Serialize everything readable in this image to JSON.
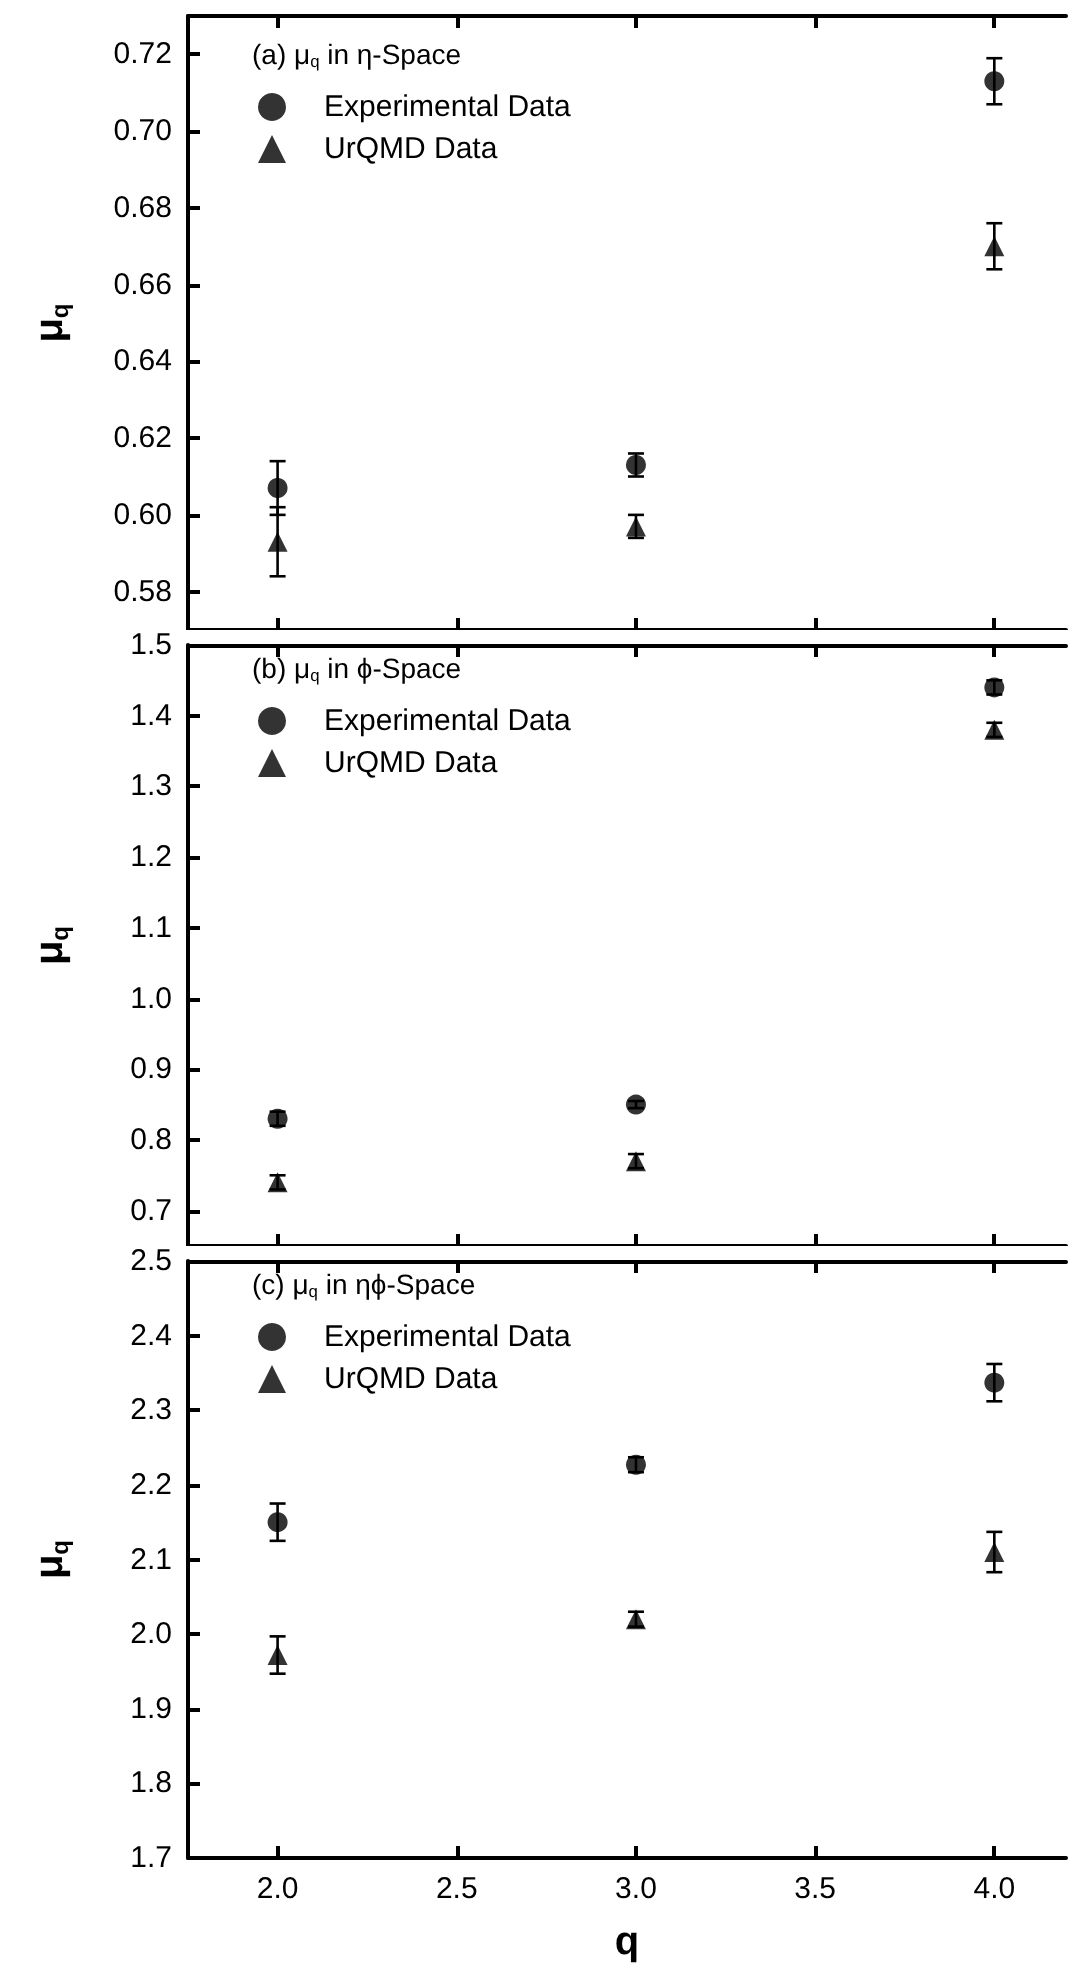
{
  "chart_data": [
    {
      "type": "scatter",
      "legend_title": "(a) μ$_{q}$ in η-Space",
      "ylabel": "μ$_{q}$",
      "x": [
        2,
        3,
        4
      ],
      "xlim": [
        1.75,
        4.2
      ],
      "xticks": [
        2,
        2.5,
        3,
        3.5,
        4
      ],
      "ylim": [
        0.57,
        0.73
      ],
      "yticks": [
        0.58,
        {
          "value": 0.6,
          "label": "0.60"
        },
        0.62,
        0.64,
        0.66,
        0.68,
        {
          "value": 0.7,
          "label": "0.70"
        },
        0.72
      ],
      "tick_labels": "y",
      "legend": "top left",
      "grid": false,
      "series": [
        {
          "name": "Experimental Data",
          "color": "#000000",
          "marker": "circle",
          "values": [
            0.607,
            0.613,
            0.713
          ],
          "errors": [
            0.007,
            0.003,
            0.006
          ]
        },
        {
          "name": "UrQMD Data",
          "color": "#000000",
          "marker": "triangle",
          "values": [
            0.593,
            0.597,
            0.67
          ],
          "errors": [
            0.009,
            0.003,
            0.006
          ]
        }
      ]
    },
    {
      "type": "scatter",
      "legend_title": "(b) μ$_{q}$ in ϕ-Space",
      "ylabel": "μ$_{q}$",
      "x": [
        2,
        3,
        4
      ],
      "xlim": [
        1.75,
        4.2
      ],
      "xticks": [
        2,
        2.5,
        3,
        3.5,
        4
      ],
      "ylim": [
        0.65,
        1.5
      ],
      "yticks": [
        0.7,
        0.8,
        0.9,
        {
          "value": 1,
          "label": "1.0"
        },
        1.1,
        1.2,
        1.3,
        1.4,
        1.5
      ],
      "tick_labels": "y",
      "legend": "top left",
      "grid": false,
      "series": [
        {
          "name": "Experimental Data",
          "color": "#000000",
          "marker": "circle",
          "values": [
            0.83,
            0.85,
            1.44
          ],
          "errors": [
            0.01,
            0.005,
            0.01
          ]
        },
        {
          "name": "UrQMD Data",
          "color": "#000000",
          "marker": "triangle",
          "values": [
            0.74,
            0.77,
            1.38
          ],
          "errors": [
            0.01,
            0.01,
            0.01
          ]
        }
      ]
    },
    {
      "type": "scatter",
      "legend_title": "(c) μ$_{q}$ in ηϕ-Space",
      "ylabel": "μ$_{q}$",
      "xlabel": "q",
      "x": [
        2,
        3,
        4
      ],
      "xlim": [
        1.75,
        4.2
      ],
      "xticks": [
        {
          "value": 2,
          "label": "2.0"
        },
        2.5,
        {
          "value": 3,
          "label": "3.0"
        },
        3.5,
        {
          "value": 4,
          "label": "4.0"
        }
      ],
      "ylim": [
        1.7,
        2.5
      ],
      "yticks": [
        1.7,
        1.8,
        1.9,
        {
          "value": 2,
          "label": "2.0"
        },
        2.1,
        2.2,
        2.3,
        2.4,
        2.5
      ],
      "legend": "top left",
      "grid": false,
      "series": [
        {
          "name": "Experimental Data",
          "color": "#000000",
          "marker": "circle",
          "values": [
            2.15,
            2.227,
            2.337
          ],
          "errors": [
            0.025,
            0.01,
            0.025
          ]
        },
        {
          "name": "UrQMD Data",
          "color": "#000000",
          "marker": "triangle",
          "values": [
            1.972,
            2.02,
            2.11
          ],
          "errors": [
            0.025,
            0.01,
            0.027
          ]
        }
      ]
    }
  ]
}
